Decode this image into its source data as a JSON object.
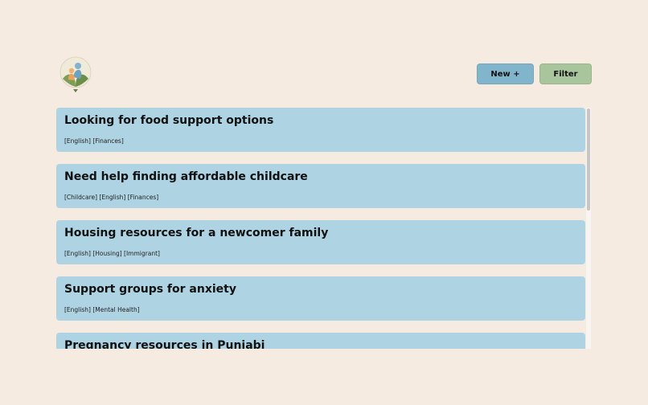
{
  "header": {
    "logo_icon": "family-hands-heart-logo",
    "new_button_label": "New +",
    "filter_button_label": "Filter"
  },
  "colors": {
    "background": "#f5ebe1",
    "card": "#aed3e3",
    "new_button": "#80b5cb",
    "filter_button": "#a8c59b"
  },
  "posts": [
    {
      "title": "Looking for food support options",
      "tags": "[English] [Finances]"
    },
    {
      "title": "Need help finding affordable childcare",
      "tags": "[Childcare] [English] [Finances]"
    },
    {
      "title": "Housing resources for a newcomer family",
      "tags": "[English] [Housing] [Immigrant]"
    },
    {
      "title": "Support groups for anxiety",
      "tags": "[English] [Mental Health]"
    },
    {
      "title": "Pregnancy resources in Punjabi",
      "tags": ""
    }
  ]
}
